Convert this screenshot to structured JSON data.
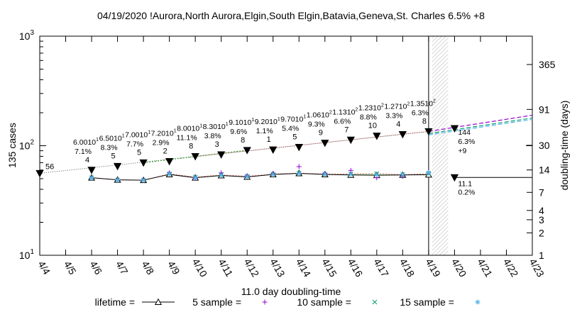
{
  "chart_data": {
    "type": "line",
    "title": "04/19/2020 !Aurora,North Aurora,Elgin,South Elgin,Batavia,Geneva,St. Charles 6.5% +8",
    "ylabel": "135 cases",
    "y2label": "doubling-time (days)",
    "xlabel": "11.0 day doubling-time",
    "y_scale": "log",
    "ylim": [
      10,
      1000
    ],
    "y_ticks": [
      {
        "base": "10",
        "exp": "1",
        "value": 10
      },
      {
        "base": "10",
        "exp": "2",
        "value": 100
      },
      {
        "base": "10",
        "exp": "3",
        "value": 1000
      }
    ],
    "y2_ticks": [
      {
        "label": "365",
        "value": 365
      },
      {
        "label": "91",
        "value": 91
      },
      {
        "label": "30",
        "value": 30
      },
      {
        "label": "14",
        "value": 14
      },
      {
        "label": "7",
        "value": 7
      },
      {
        "label": "4",
        "value": 4
      },
      {
        "label": "3",
        "value": 3
      },
      {
        "label": "2",
        "value": 2
      },
      {
        "label": "1",
        "value": 1
      }
    ],
    "x_ticks": [
      "4/4",
      "4/5",
      "4/6",
      "4/7",
      "4/8",
      "4/9",
      "4/10",
      "4/11",
      "4/12",
      "4/13",
      "4/14",
      "4/15",
      "4/16",
      "4/17",
      "4/18",
      "4/19",
      "4/20",
      "4/21",
      "4/22",
      "4/23"
    ],
    "cases": {
      "x": [
        "4/4",
        "4/6",
        "4/7",
        "4/8",
        "4/9",
        "4/10",
        "4/11",
        "4/12",
        "4/13",
        "4/14",
        "4/15",
        "4/16",
        "4/17",
        "4/18",
        "4/19"
      ],
      "values": [
        56,
        60,
        65,
        70,
        72,
        80,
        83,
        91,
        92,
        97,
        106,
        113,
        123,
        127,
        135
      ],
      "labels": [
        "56",
        "4",
        "5",
        "5",
        "2",
        "8",
        "3",
        "8",
        "1",
        "5",
        "9",
        "7",
        "10",
        "4",
        "8"
      ]
    },
    "annotations": [
      {
        "x": "4/6",
        "mantissa": "6.00",
        "exp": "1",
        "pct": "7.1%"
      },
      {
        "x": "4/7",
        "mantissa": "6.50",
        "exp": "1",
        "pct": "8.3%"
      },
      {
        "x": "4/8",
        "mantissa": "7.00",
        "exp": "1",
        "pct": "7.7%"
      },
      {
        "x": "4/9",
        "mantissa": "7.20",
        "exp": "1",
        "pct": "2.9%"
      },
      {
        "x": "4/10",
        "mantissa": "8.00",
        "exp": "1",
        "pct": "11.1%"
      },
      {
        "x": "4/11",
        "mantissa": "8.30",
        "exp": "1",
        "pct": "3.8%"
      },
      {
        "x": "4/12",
        "mantissa": "9.10",
        "exp": "1",
        "pct": "9.6%"
      },
      {
        "x": "4/13",
        "mantissa": "9.20",
        "exp": "1",
        "pct": "1.1%"
      },
      {
        "x": "4/14",
        "mantissa": "9.70",
        "exp": "1",
        "pct": "5.4%"
      },
      {
        "x": "4/15",
        "mantissa": "1.06",
        "exp": "2",
        "pct": "9.3%"
      },
      {
        "x": "4/16",
        "mantissa": "1.13",
        "exp": "2",
        "pct": "6.6%"
      },
      {
        "x": "4/17",
        "mantissa": "1.23",
        "exp": "2",
        "pct": "8.8%"
      },
      {
        "x": "4/18",
        "mantissa": "1.27",
        "exp": "2",
        "pct": "3.3%"
      },
      {
        "x": "4/19",
        "mantissa": "1.35",
        "exp": "2",
        "pct": "6.3%"
      }
    ],
    "projection": {
      "x": "4/20",
      "value": 144,
      "label": "144",
      "pct": "6.3%",
      "plus": "+9"
    },
    "doubling_projection": {
      "x": "4/20",
      "value": 11.1,
      "label": "11.1",
      "pct": "0.2%"
    },
    "doubling_series": {
      "x": [
        "4/6",
        "4/7",
        "4/8",
        "4/9",
        "4/10",
        "4/11",
        "4/12",
        "4/13",
        "4/14",
        "4/15",
        "4/16",
        "4/17",
        "4/18",
        "4/19"
      ],
      "lifetime": [
        11.0,
        10.3,
        10.2,
        12.2,
        11.0,
        11.8,
        11.3,
        12.2,
        12.6,
        12.2,
        12.0,
        11.9,
        12.0,
        12.1
      ],
      "sample5": [
        11.0,
        10.3,
        10.2,
        12.8,
        10.8,
        12.8,
        11.7,
        12.6,
        15.5,
        12.6,
        13.8,
        11.0,
        11.5,
        12.8
      ],
      "sample10": [
        11.0,
        10.3,
        10.2,
        12.4,
        11.2,
        12.0,
        11.5,
        12.3,
        12.7,
        12.3,
        12.4,
        12.5,
        12.1,
        12.5
      ],
      "sample15": [
        11.0,
        10.3,
        10.2,
        12.3,
        11.1,
        11.9,
        11.4,
        12.2,
        12.6,
        12.3,
        12.2,
        12.1,
        12.2,
        12.9
      ]
    },
    "legend": [
      {
        "label": "lifetime =",
        "color": "#000000",
        "marker": "triangle"
      },
      {
        "label": "5 sample =",
        "color": "#9400d3",
        "marker": "plus"
      },
      {
        "label": "10 sample =",
        "color": "#009e73",
        "marker": "cross"
      },
      {
        "label": "15 sample =",
        "color": "#56b4e9",
        "marker": "star"
      }
    ],
    "legend_placement": "bottom",
    "grid": false
  }
}
